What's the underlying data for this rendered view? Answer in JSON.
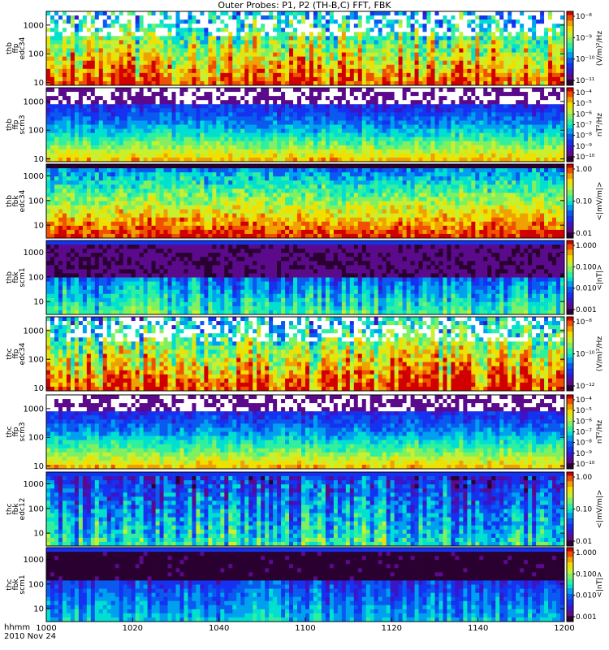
{
  "title": "Outer Probes: P1, P2 (TH-B,C) FFT, FBK",
  "time_label": "hhmm",
  "date_label": "2010 Nov 24",
  "colors": {
    "cmap": [
      "#ffffff",
      "#2a0030",
      "#5a0a8a",
      "#3a16c8",
      "#1432f0",
      "#0a5af0",
      "#00a0f0",
      "#00e0d0",
      "#30f0a0",
      "#80f060",
      "#c8f030",
      "#f0e000",
      "#f0a000",
      "#f05000",
      "#d00000"
    ],
    "frame": "#000000"
  },
  "chart_data": {
    "type": "heatmap",
    "title": "Outer Probes: P1, P2 (TH-B,C) FFT, FBK",
    "x_axis": {
      "label": "hhmm",
      "date": "2010 Nov 24",
      "ticks": [
        "1000",
        "1020",
        "1040",
        "1100",
        "1120",
        "1140",
        "1200"
      ]
    },
    "panels": [
      {
        "ylabel": [
          "thb",
          "ffp",
          "edc34"
        ],
        "yticks": [
          "1000",
          "100",
          "10"
        ],
        "ylog": true,
        "yrange": [
          8,
          3000
        ],
        "cbar_label": "(V/m)²/Hz",
        "cbar_ticks": [
          "10⁻⁸",
          "10⁻⁹",
          "10⁻¹⁰",
          "10⁻¹¹"
        ],
        "kind": "fft_e"
      },
      {
        "ylabel": [
          "thb",
          "ffp",
          "scm3"
        ],
        "yticks": [
          "1000",
          "100",
          "10"
        ],
        "ylog": true,
        "yrange": [
          8,
          3000
        ],
        "cbar_label": "nT²/Hz",
        "cbar_ticks": [
          "10⁻⁴",
          "10⁻⁵",
          "10⁻⁶",
          "10⁻⁷",
          "10⁻⁸",
          "10⁻⁹",
          "10⁻¹⁰"
        ],
        "kind": "fft_b"
      },
      {
        "ylabel": [
          "thb",
          "fbk",
          "edc34"
        ],
        "yticks": [
          "1000",
          "100",
          "10"
        ],
        "ylog": true,
        "yrange": [
          3,
          3000
        ],
        "cbar_label": "<|mV/m|>",
        "cbar_ticks": [
          "1.00",
          "0.10",
          "0.01"
        ],
        "kind": "fbk_e_high"
      },
      {
        "ylabel": [
          "thb",
          "fbk",
          "scm1"
        ],
        "yticks": [
          "1000",
          "100",
          "10"
        ],
        "ylog": true,
        "yrange": [
          3,
          3000
        ],
        "cbar_label": "<|nT|>",
        "cbar_ticks": [
          "1.000",
          "0.100",
          "0.010",
          "0.001"
        ],
        "kind": "fbk_b"
      },
      {
        "ylabel": [
          "thc",
          "ffp",
          "edc34"
        ],
        "yticks": [
          "1000",
          "100",
          "10"
        ],
        "ylog": true,
        "yrange": [
          8,
          3000
        ],
        "cbar_label": "(V/m)²/Hz",
        "cbar_ticks": [
          "10⁻⁸",
          "10⁻¹⁰",
          "10⁻¹²"
        ],
        "kind": "fft_e"
      },
      {
        "ylabel": [
          "thc",
          "ffp",
          "scm3"
        ],
        "yticks": [
          "1000",
          "100",
          "10"
        ],
        "ylog": true,
        "yrange": [
          8,
          3000
        ],
        "cbar_label": "nT²/Hz",
        "cbar_ticks": [
          "10⁻⁴",
          "10⁻⁵",
          "10⁻⁶",
          "10⁻⁷",
          "10⁻⁸",
          "10⁻⁹",
          "10⁻¹⁰"
        ],
        "kind": "fft_b"
      },
      {
        "ylabel": [
          "thc",
          "fbk",
          "edc12"
        ],
        "yticks": [
          "1000",
          "100",
          "10"
        ],
        "ylog": true,
        "yrange": [
          3,
          3000
        ],
        "cbar_label": "<|mV/m|>",
        "cbar_ticks": [
          "1.00",
          "0.10",
          "0.01"
        ],
        "kind": "fbk_e_low"
      },
      {
        "ylabel": [
          "thc",
          "fbk",
          "scm1"
        ],
        "yticks": [
          "1000",
          "100",
          "10"
        ],
        "ylog": true,
        "yrange": [
          3,
          3000
        ],
        "cbar_label": "<|nT|>",
        "cbar_ticks": [
          "1.000",
          "0.100",
          "0.010",
          "0.001"
        ],
        "kind": "fbk_b2"
      }
    ]
  }
}
